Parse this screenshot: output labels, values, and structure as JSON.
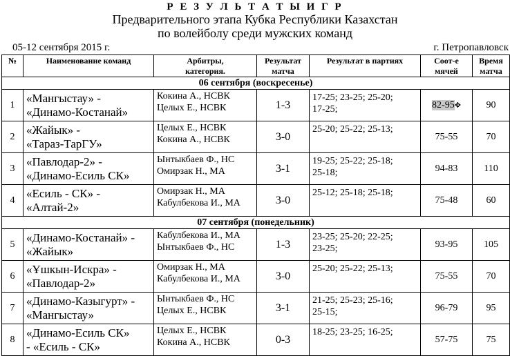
{
  "header": {
    "title": "Р Е З У Л Ь Т А Т Ы  И Г Р",
    "subtitle1": "Предварительного этапа Кубка Республики Казахстан",
    "subtitle2": "по волейболу среди мужских команд",
    "dates": "05-12 сентября  2015 г.",
    "city": "г. Петропавловск"
  },
  "columns": {
    "num": "№",
    "teams": "Наименование   команд",
    "refs1": "Арбитры,",
    "refs2": "категория.",
    "result1": "Результат",
    "result2": "матча",
    "sets": "Результат  в партиях",
    "ratio1": "Соот-е",
    "ratio2": "мячей",
    "time1": "Время",
    "time2": "матча"
  },
  "days": [
    "06 сентября (воскресенье)",
    "07 сентября (понедельник)"
  ],
  "rows": [
    {
      "num": "1",
      "team1": "«Мангыстау» -",
      "team2": "«Динамо-Костанай»",
      "ref1": "Кокина А., НСВК",
      "ref2": "Целых Е., НСВК",
      "result": "1-3",
      "sets1": "17-25; 23-25; 25-20;",
      "sets2": "17-25;",
      "ratio": "82-95",
      "time": "90"
    },
    {
      "num": "2",
      "team1": "«Жайык» -",
      "team2": "«Тараз-ТарГУ»",
      "ref1": "Целых Е., НСВК",
      "ref2": "Кокина А., НСВК",
      "result": "3-0",
      "sets1": "25-20; 25-22; 25-13;",
      "sets2": "",
      "ratio": "75-55",
      "time": "70"
    },
    {
      "num": "3",
      "team1": "«Павлодар-2» -",
      "team2": "«Динамо-Есиль СК»",
      "ref1": "Ынтыкбаев Ф., НС",
      "ref2": "Омирзак Н., МА",
      "result": "3-1",
      "sets1": "19-25; 25-22; 25-18;",
      "sets2": "25-18;",
      "ratio": "94-83",
      "time": "110"
    },
    {
      "num": "4",
      "team1": "«Есиль - СК» -",
      "team2": "«Алтай-2»",
      "ref1": "Омирзак Н., МА",
      "ref2": "Кабулбекова И., МА",
      "result": "3-0",
      "sets1": "25-12; 25-18; 25-18;",
      "sets2": "",
      "ratio": "75-48",
      "time": "60"
    },
    {
      "num": "5",
      "team1": "«Динамо-Костанай» -",
      "team2": "«Жайык»",
      "ref1": "Кабулбекова И., МА",
      "ref2": "Ынтыкбаев Ф., НС",
      "result": "1-3",
      "sets1": "23-25; 25-20; 22-25;",
      "sets2": "23-25;",
      "ratio": "93-95",
      "time": "105"
    },
    {
      "num": "6",
      "team1": "«Ұшкын-Искра» -",
      "team2": "«Павлодар-2»",
      "ref1": "Омирзак Н., МА",
      "ref2": "Кабулбекова И., МА",
      "result": "3-0",
      "sets1": "25-20; 25-22; 25-13;",
      "sets2": "",
      "ratio": "75-55",
      "time": "70"
    },
    {
      "num": "7",
      "team1": "«Динамо-Казыгурт» -",
      "team2": "«Мангыстау»",
      "ref1": "Ынтыкбаев Ф., НС",
      "ref2": "Целых Е., НСВК",
      "result": "3-1",
      "sets1": "21-25; 25-23; 25-16;",
      "sets2": "25-15;",
      "ratio": "96-79",
      "time": "95"
    },
    {
      "num": "8",
      "team1": "«Динамо-Есиль СК»",
      "team2": "- «Есиль - СК»",
      "ref1": "Целых Е., НСВК",
      "ref2": "Кокина А., НСВК",
      "result": "0-3",
      "sets1": "18-25; 23-25; 16-25;",
      "sets2": "",
      "ratio": "57-75",
      "time": "75"
    }
  ],
  "selection_color": "#c8c8c8"
}
